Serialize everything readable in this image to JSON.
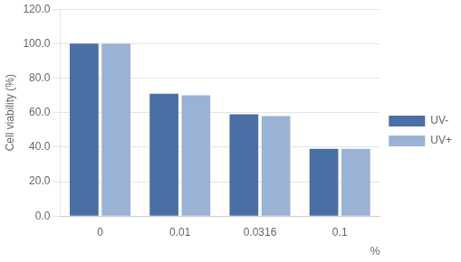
{
  "chart_data": {
    "type": "bar",
    "categories": [
      "0",
      "0.01",
      "0.0316",
      "0.1"
    ],
    "series": [
      {
        "name": "UV-",
        "color": "#4a6fa5",
        "values": [
          100.0,
          71.0,
          59.0,
          39.0
        ]
      },
      {
        "name": "UV+",
        "color": "#9ab3d4",
        "values": [
          100.0,
          70.0,
          58.0,
          39.0
        ]
      }
    ],
    "ylabel": "Cell viability (%)",
    "xlabel": "%",
    "ylim": [
      0,
      120
    ],
    "yticks": [
      {
        "value": 0,
        "label": "0.0"
      },
      {
        "value": 20,
        "label": "20.0"
      },
      {
        "value": 40,
        "label": "40.0"
      },
      {
        "value": 60,
        "label": "60.0"
      },
      {
        "value": 80,
        "label": "80.0"
      },
      {
        "value": 100,
        "label": "100.0"
      },
      {
        "value": 120,
        "label": "120.0"
      }
    ],
    "grid": true,
    "legend": "right"
  }
}
